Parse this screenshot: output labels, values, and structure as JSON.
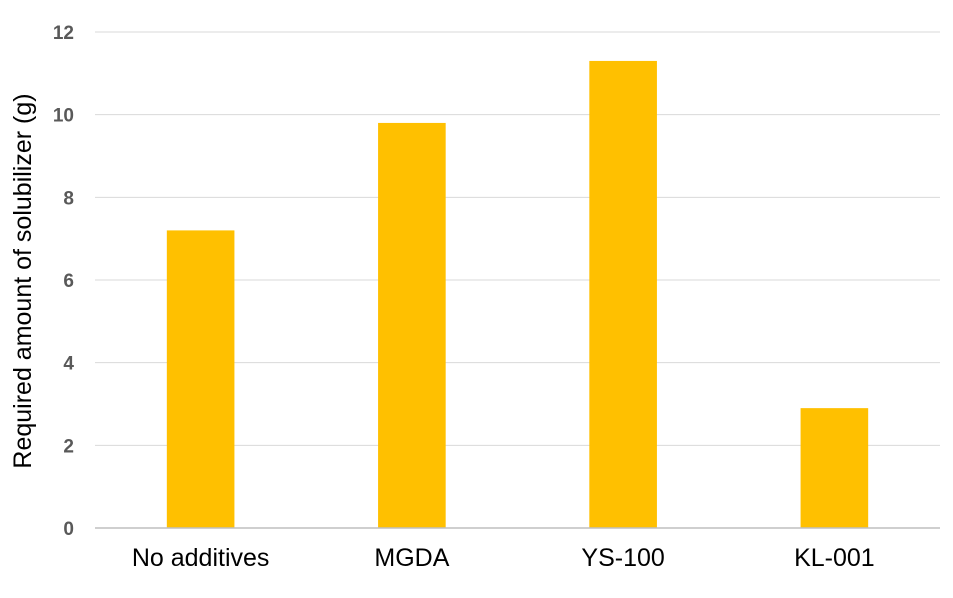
{
  "chart_data": {
    "type": "bar",
    "title": "",
    "xlabel": "",
    "ylabel": "Required amount of solubilizer (g)",
    "categories": [
      "No additives",
      "MGDA",
      "YS-100",
      "KL-001"
    ],
    "values": [
      7.2,
      9.8,
      11.3,
      2.9
    ],
    "ylim": [
      0,
      12
    ],
    "yticks": [
      0,
      2,
      4,
      6,
      8,
      10,
      12
    ],
    "ytick_labels": [
      "0",
      "2",
      "4",
      "6",
      "8",
      "10",
      "12"
    ],
    "grid": true,
    "legend": "none",
    "colors": {
      "bar": "#FFC000",
      "grid": "#D9D9D9",
      "axis": "#BFBFBF",
      "tick_text": "#595959"
    }
  }
}
